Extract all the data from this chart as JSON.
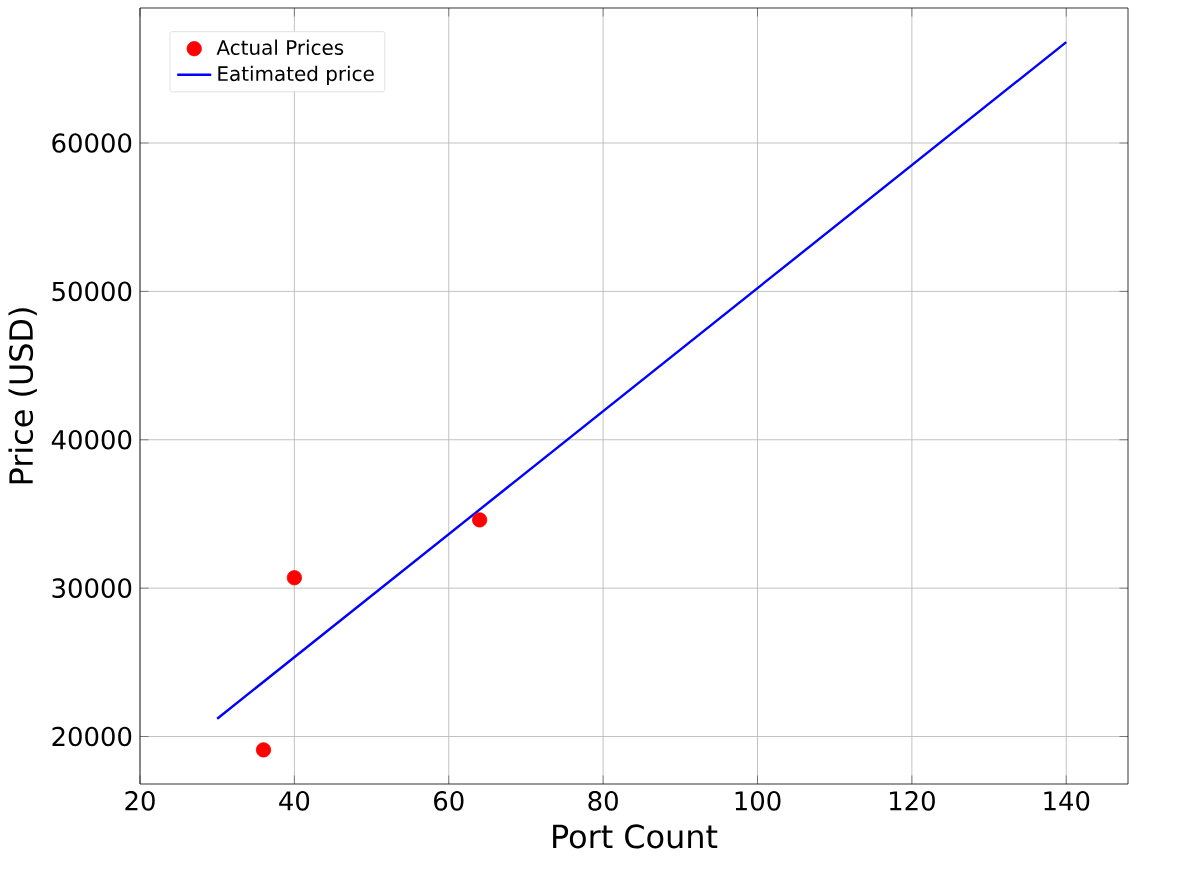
{
  "chart_data": {
    "type": "scatter",
    "xlabel": "Port Count",
    "ylabel": "Price (USD)",
    "series": [
      {
        "name": "Actual Prices",
        "color": "#ff0000",
        "marker": "circle",
        "x": [
          36,
          40,
          64
        ],
        "values": [
          19100,
          30700,
          34600
        ]
      },
      {
        "name": "Eatimated price",
        "type": "line",
        "color": "#0000ff",
        "marker": "none",
        "x": [
          30,
          140
        ],
        "values": [
          21200,
          66800
        ]
      }
    ],
    "xlim": [
      20,
      148
    ],
    "ylim": [
      16800,
      69100
    ],
    "xticks": [
      20,
      40,
      60,
      80,
      100,
      120,
      140
    ],
    "yticks": [
      20000,
      30000,
      40000,
      50000,
      60000
    ],
    "grid": true,
    "legend": "top left"
  }
}
